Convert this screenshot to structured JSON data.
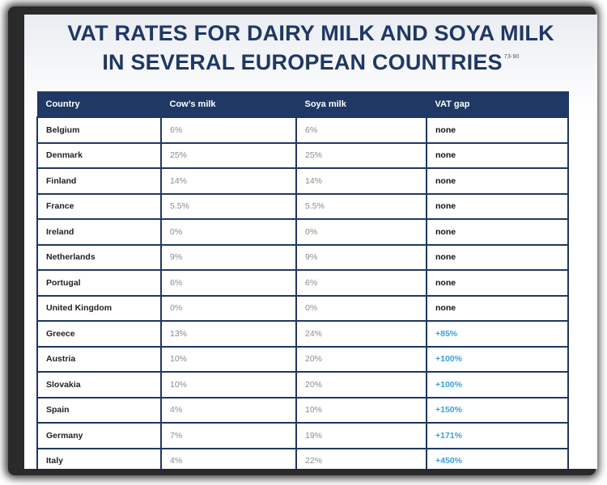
{
  "title": {
    "line1": "VAT RATES FOR DAIRY MILK AND SOYA MILK",
    "line2": "IN SEVERAL EUROPEAN COUNTRIES",
    "ref": "73-90"
  },
  "table": {
    "headers": [
      "Country",
      "Cow’s milk",
      "Soya milk",
      "VAT gap"
    ],
    "rows": [
      {
        "country": "Belgium",
        "cow": "6%",
        "soya": "6%",
        "gap": "none"
      },
      {
        "country": "Denmark",
        "cow": "25%",
        "soya": "25%",
        "gap": "none"
      },
      {
        "country": "Finland",
        "cow": "14%",
        "soya": "14%",
        "gap": "none"
      },
      {
        "country": "France",
        "cow": "5.5%",
        "soya": "5.5%",
        "gap": "none"
      },
      {
        "country": "Ireland",
        "cow": "0%",
        "soya": "0%",
        "gap": "none"
      },
      {
        "country": "Netherlands",
        "cow": "9%",
        "soya": "9%",
        "gap": "none"
      },
      {
        "country": "Portugal",
        "cow": "6%",
        "soya": "6%",
        "gap": "none"
      },
      {
        "country": "United Kingdom",
        "cow": "0%",
        "soya": "0%",
        "gap": "none"
      },
      {
        "country": "Greece",
        "cow": "13%",
        "soya": "24%",
        "gap": "+85%"
      },
      {
        "country": "Austria",
        "cow": "10%",
        "soya": "20%",
        "gap": "+100%"
      },
      {
        "country": "Slovakia",
        "cow": "10%",
        "soya": "20%",
        "gap": "+100%"
      },
      {
        "country": "Spain",
        "cow": "4%",
        "soya": "10%",
        "gap": "+150%"
      },
      {
        "country": "Germany",
        "cow": "7%",
        "soya": "19%",
        "gap": "+171%"
      },
      {
        "country": "Italy",
        "cow": "4%",
        "soya": "22%",
        "gap": "+450%"
      }
    ]
  },
  "colors": {
    "header_bg": "#1f3864",
    "title": "#1f3864",
    "gap_positive": "#3aa0d8"
  }
}
